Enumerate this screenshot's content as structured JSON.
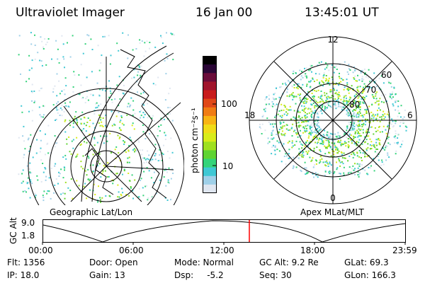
{
  "header": {
    "instrument": "Ultraviolet Imager",
    "date": "16 Jan 00",
    "time": "13:45:01 UT"
  },
  "geo_panel": {
    "caption": "Geographic Lat/Lon"
  },
  "apex_panel": {
    "caption": "Apex MLat/MLT",
    "mlt_labels": {
      "top": "12",
      "left": "18",
      "right": "6",
      "bottom": "0"
    },
    "lat_labels": [
      "60",
      "70",
      "80"
    ]
  },
  "colorbar": {
    "unit_label": "photon cm⁻²s⁻¹",
    "tick_labels": [
      "100",
      "10"
    ],
    "colors": [
      "#dfe6f0",
      "#9fd0e8",
      "#3fc8d4",
      "#34d37a",
      "#5fd332",
      "#9fe020",
      "#d8ec1a",
      "#f0dc18",
      "#f8b414",
      "#f07c14",
      "#e04818",
      "#c81c1c",
      "#a0142c",
      "#6a0c3a",
      "#2a0636",
      "#000000"
    ]
  },
  "orbit_plot": {
    "ylabel": "GC Alt",
    "yticks": [
      "9.0",
      "1.8"
    ],
    "xticks": [
      "00:00",
      "06:00",
      "12:00",
      "18:00",
      "23:59"
    ],
    "current_time_color": "#ff0000"
  },
  "status": {
    "flt": "Flt: 1356",
    "door": "Door: Open",
    "mode": "Mode: Normal",
    "gc_alt": "GC Alt: 9.2 Re",
    "glat": "GLat:  69.3",
    "ip": "IP: 18.0",
    "gain": "Gain: 13",
    "dsp": "Dsp:     -5.2",
    "seq": "Seq: 30",
    "glon": "GLon: 166.3"
  }
}
